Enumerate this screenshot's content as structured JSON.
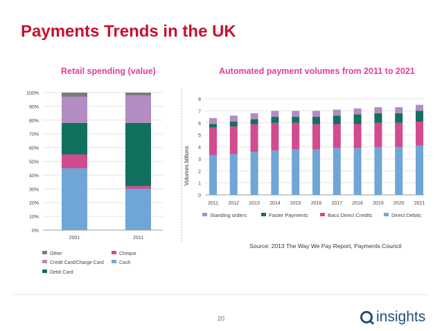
{
  "slide": {
    "title": "Payments Trends in the UK",
    "source": "Source: 2013 The Way We Pay Report, Payments Council",
    "page_number": "20",
    "logo_text": "insights"
  },
  "colors": {
    "title": "#c8102e",
    "chart_title": "#e23f96",
    "other": "#7b7b7b",
    "cheque": "#d14b8f",
    "credit_card": "#b28cc3",
    "debit_card": "#12705f",
    "cash": "#6fa6d6",
    "logo": "#1f4e79"
  },
  "chart_data": [
    {
      "type": "bar",
      "stacked": true,
      "title": "Retail spending (value)",
      "categories": [
        "2001",
        "2011"
      ],
      "yticks": [
        "0%",
        "10%",
        "20%",
        "30%",
        "40%",
        "50%",
        "60%",
        "70%",
        "80%",
        "90%",
        "100%"
      ],
      "ylim": [
        0,
        100
      ],
      "series": [
        {
          "name": "Cash",
          "values": [
            45,
            30
          ]
        },
        {
          "name": "Cheque",
          "values": [
            10,
            2
          ]
        },
        {
          "name": "Debit Card",
          "values": [
            23,
            46
          ]
        },
        {
          "name": "Credit Card/Charge Card",
          "values": [
            19,
            20
          ]
        },
        {
          "name": "Other",
          "values": [
            3,
            2
          ]
        }
      ],
      "legend": [
        {
          "name": "Other",
          "color_key": "other"
        },
        {
          "name": "Cheque",
          "color_key": "cheque"
        },
        {
          "name": "Credit Card/Charge Card",
          "color_key": "credit_card"
        },
        {
          "name": "Cash",
          "color_key": "cash"
        },
        {
          "name": "Debit Card",
          "color_key": "debit_card"
        }
      ],
      "legend_position": "bottom",
      "grid": true
    },
    {
      "type": "bar",
      "stacked": true,
      "title": "Automated payment volumes from 2011 to 2021",
      "ylabel": "Volumes billions",
      "categories": [
        "2011",
        "2012",
        "2013",
        "2014",
        "2015",
        "2016",
        "2017",
        "2018",
        "2019",
        "2020",
        "2021"
      ],
      "yticks": [
        "0",
        "1",
        "2",
        "3",
        "4",
        "5",
        "6",
        "7",
        "8"
      ],
      "ylim": [
        0,
        8
      ],
      "series": [
        {
          "name": "Direct Debits",
          "values": [
            3.3,
            3.4,
            3.6,
            3.7,
            3.8,
            3.8,
            3.9,
            3.9,
            4.0,
            4.0,
            4.1
          ]
        },
        {
          "name": "Bacs Direct Credits",
          "values": [
            2.3,
            2.3,
            2.3,
            2.3,
            2.2,
            2.1,
            2.0,
            2.0,
            2.0,
            2.0,
            2.0
          ]
        },
        {
          "name": "Faster Payments",
          "values": [
            0.3,
            0.4,
            0.4,
            0.5,
            0.5,
            0.6,
            0.7,
            0.8,
            0.8,
            0.8,
            0.9
          ]
        },
        {
          "name": "Standing orders",
          "values": [
            0.5,
            0.5,
            0.5,
            0.5,
            0.5,
            0.5,
            0.5,
            0.5,
            0.5,
            0.5,
            0.5
          ]
        }
      ],
      "legend": [
        {
          "name": "Standing orders",
          "color_key": "credit_card"
        },
        {
          "name": "Faster Payments",
          "color_key": "debit_card"
        },
        {
          "name": "Bacs Direct Credits",
          "color_key": "cheque"
        },
        {
          "name": "Direct Debits",
          "color_key": "cash"
        }
      ],
      "legend_position": "bottom",
      "grid": true
    }
  ]
}
